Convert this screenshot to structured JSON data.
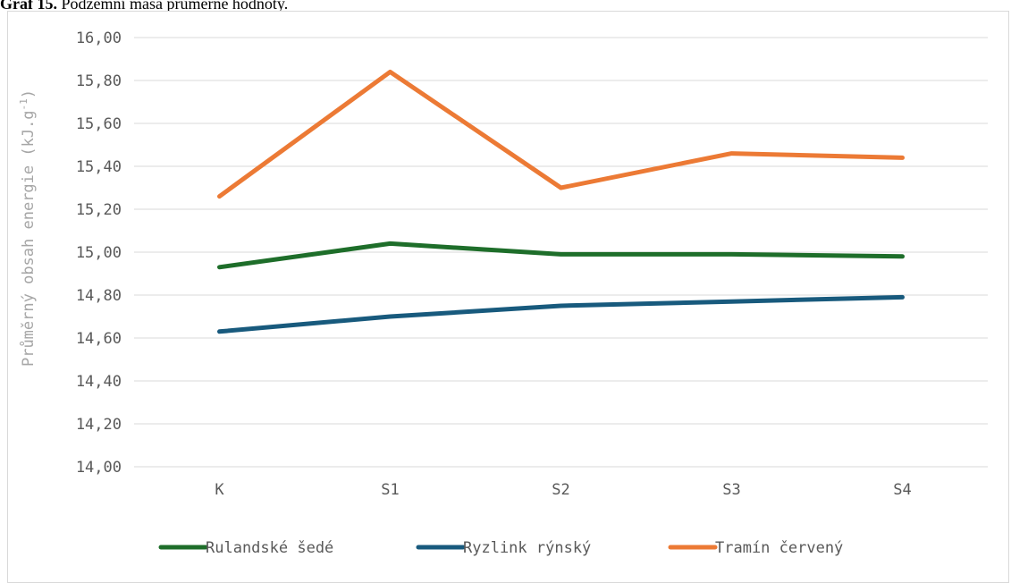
{
  "caption": {
    "prefix": "Graf 15.",
    "text": "Podzemní masa průměrné hodnoty."
  },
  "colors": {
    "Rulandské šedé": "#1e6e2a",
    "Ryzlink rýnský": "#185a7d",
    "Tramín červený": "#ec7a35",
    "grid": "#d9d9d9",
    "tick_text": "#595959",
    "axis_title": "#a6a6a6"
  },
  "chart_data": {
    "type": "line",
    "categories": [
      "K",
      "S1",
      "S2",
      "S3",
      "S4"
    ],
    "ylabel": "Průměrný obsah energie (kJ.g",
    "ylabel_sup": "-1",
    "ylabel_suffix": ")",
    "ylim": [
      14.0,
      16.0
    ],
    "yticks": [
      "14,00",
      "14,20",
      "14,40",
      "14,60",
      "14,80",
      "15,00",
      "15,20",
      "15,40",
      "15,60",
      "15,80",
      "16,00"
    ],
    "grid": true,
    "legend_position": "bottom",
    "series": [
      {
        "name": "Rulandské šedé",
        "values": [
          14.93,
          15.04,
          14.99,
          14.99,
          14.98
        ]
      },
      {
        "name": "Ryzlink rýnský",
        "values": [
          14.63,
          14.7,
          14.75,
          14.77,
          14.79
        ]
      },
      {
        "name": "Tramín červený",
        "values": [
          15.26,
          15.84,
          15.3,
          15.46,
          15.44
        ]
      }
    ]
  }
}
